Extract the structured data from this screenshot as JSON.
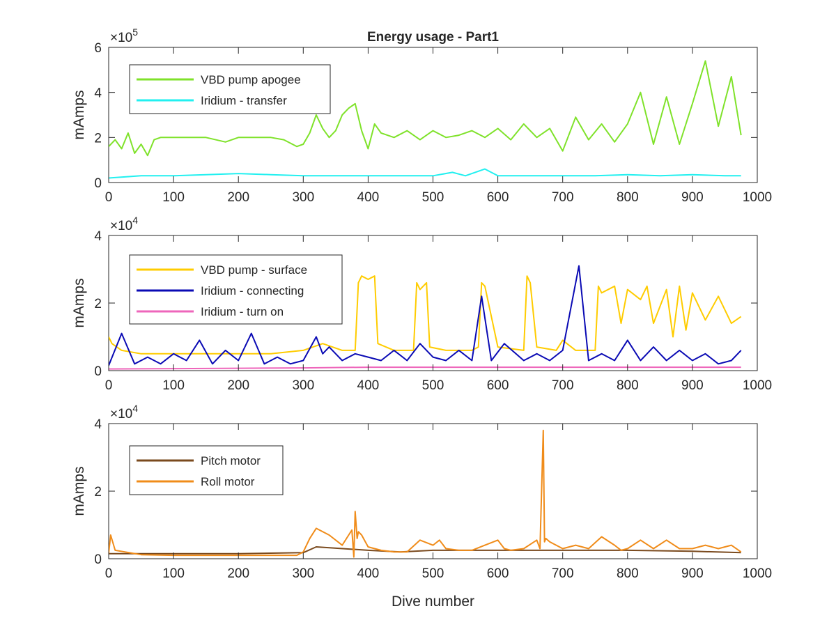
{
  "chart_data": [
    {
      "type": "line",
      "title": "Energy usage - Part1",
      "xlabel": "",
      "ylabel": "mAmps",
      "exponent": "5",
      "xlim": [
        0,
        1000
      ],
      "ylim": [
        0,
        600000
      ],
      "xticks": [
        "0",
        "100",
        "200",
        "300",
        "400",
        "500",
        "600",
        "700",
        "800",
        "900",
        "1000"
      ],
      "yticks": [
        "0",
        "2",
        "4",
        "6"
      ],
      "legend_position": "top-left",
      "grid": false,
      "series": [
        {
          "name": "VBD pump apogee",
          "color": "#7fe22a",
          "x": [
            0,
            10,
            20,
            30,
            40,
            50,
            60,
            70,
            80,
            100,
            150,
            180,
            200,
            250,
            270,
            290,
            300,
            310,
            320,
            330,
            340,
            350,
            360,
            370,
            380,
            390,
            400,
            410,
            420,
            440,
            460,
            480,
            500,
            520,
            540,
            560,
            580,
            600,
            620,
            640,
            660,
            680,
            700,
            720,
            740,
            760,
            780,
            800,
            820,
            840,
            860,
            880,
            900,
            920,
            940,
            960,
            975
          ],
          "values": [
            160000,
            190000,
            150000,
            220000,
            130000,
            170000,
            120000,
            190000,
            200000,
            200000,
            200000,
            180000,
            200000,
            200000,
            190000,
            160000,
            170000,
            220000,
            300000,
            240000,
            200000,
            230000,
            300000,
            330000,
            350000,
            230000,
            150000,
            260000,
            220000,
            200000,
            230000,
            190000,
            230000,
            200000,
            210000,
            230000,
            200000,
            240000,
            190000,
            260000,
            200000,
            240000,
            140000,
            290000,
            190000,
            260000,
            180000,
            260000,
            400000,
            170000,
            380000,
            170000,
            350000,
            540000,
            250000,
            470000,
            210000
          ]
        },
        {
          "name": "Iridium - transfer",
          "color": "#22f0f0",
          "x": [
            0,
            50,
            100,
            150,
            200,
            250,
            300,
            350,
            400,
            450,
            500,
            530,
            550,
            580,
            600,
            650,
            700,
            750,
            800,
            850,
            900,
            950,
            975
          ],
          "values": [
            20000,
            30000,
            30000,
            35000,
            40000,
            35000,
            30000,
            30000,
            30000,
            30000,
            30000,
            45000,
            30000,
            60000,
            30000,
            30000,
            30000,
            30000,
            35000,
            30000,
            35000,
            30000,
            30000
          ]
        }
      ]
    },
    {
      "type": "line",
      "title": "",
      "xlabel": "",
      "ylabel": "mAmps",
      "exponent": "4",
      "xlim": [
        0,
        1000
      ],
      "ylim": [
        0,
        40000
      ],
      "xticks": [
        "0",
        "100",
        "200",
        "300",
        "400",
        "500",
        "600",
        "700",
        "800",
        "900",
        "1000"
      ],
      "yticks": [
        "0",
        "2",
        "4"
      ],
      "legend_position": "top-left",
      "grid": false,
      "series": [
        {
          "name": "VBD pump - surface",
          "color": "#ffcc00",
          "x": [
            0,
            5,
            20,
            50,
            100,
            150,
            200,
            250,
            300,
            330,
            360,
            380,
            385,
            390,
            400,
            410,
            415,
            440,
            470,
            475,
            480,
            490,
            495,
            520,
            560,
            570,
            575,
            580,
            600,
            640,
            645,
            650,
            660,
            690,
            700,
            720,
            750,
            755,
            760,
            780,
            790,
            800,
            820,
            830,
            840,
            860,
            870,
            880,
            890,
            900,
            920,
            940,
            960,
            975
          ],
          "values": [
            10000,
            8000,
            6000,
            5000,
            5000,
            5000,
            5000,
            5000,
            6000,
            8000,
            6000,
            6000,
            26000,
            28000,
            27000,
            28000,
            8000,
            6000,
            6000,
            26000,
            24000,
            26000,
            7000,
            6000,
            6000,
            7000,
            26000,
            25000,
            7000,
            6000,
            28000,
            26000,
            7000,
            6000,
            9000,
            6000,
            6000,
            25000,
            23000,
            25000,
            14000,
            24000,
            21000,
            25000,
            14000,
            24000,
            10000,
            25000,
            12000,
            23000,
            15000,
            22000,
            14000,
            16000
          ]
        },
        {
          "name": "Iridium - connecting",
          "color": "#0a0ab4",
          "x": [
            0,
            20,
            40,
            60,
            80,
            100,
            120,
            140,
            160,
            180,
            200,
            220,
            240,
            260,
            280,
            300,
            320,
            330,
            340,
            360,
            380,
            400,
            420,
            440,
            460,
            480,
            500,
            520,
            540,
            560,
            575,
            590,
            610,
            640,
            660,
            680,
            700,
            725,
            740,
            760,
            780,
            800,
            820,
            840,
            860,
            880,
            900,
            920,
            940,
            960,
            975
          ],
          "values": [
            1500,
            11000,
            2000,
            4000,
            2000,
            5000,
            3000,
            9000,
            2000,
            6000,
            3000,
            11000,
            2000,
            4000,
            2000,
            3000,
            10000,
            5000,
            7000,
            3000,
            5000,
            4000,
            3000,
            6000,
            3000,
            8000,
            4000,
            3000,
            6000,
            3000,
            22000,
            3000,
            8000,
            3000,
            5000,
            3000,
            6000,
            31000,
            3000,
            5000,
            3000,
            9000,
            3000,
            7000,
            3000,
            6000,
            3000,
            5000,
            2000,
            3000,
            6000
          ]
        },
        {
          "name": "Iridium - turn on",
          "color": "#ee66bb",
          "x": [
            0,
            100,
            200,
            300,
            400,
            500,
            600,
            700,
            800,
            900,
            975
          ],
          "values": [
            500,
            600,
            700,
            800,
            1000,
            1000,
            1000,
            1000,
            1000,
            1000,
            1000
          ]
        }
      ]
    },
    {
      "type": "line",
      "title": "",
      "xlabel": "Dive number",
      "ylabel": "mAmps",
      "exponent": "4",
      "xlim": [
        0,
        1000
      ],
      "ylim": [
        0,
        40000
      ],
      "xticks": [
        "0",
        "100",
        "200",
        "300",
        "400",
        "500",
        "600",
        "700",
        "800",
        "900",
        "1000"
      ],
      "yticks": [
        "0",
        "2",
        "4"
      ],
      "legend_position": "top-left",
      "grid": false,
      "series": [
        {
          "name": "Pitch motor",
          "color": "#7a4a1e",
          "x": [
            0,
            100,
            200,
            300,
            320,
            400,
            450,
            500,
            600,
            700,
            800,
            900,
            975
          ],
          "values": [
            1500,
            1500,
            1500,
            1800,
            3500,
            2500,
            2000,
            2500,
            2500,
            2500,
            2500,
            2200,
            1800
          ]
        },
        {
          "name": "Roll motor",
          "color": "#f08c1a",
          "x": [
            0,
            3,
            10,
            50,
            100,
            150,
            200,
            250,
            290,
            300,
            310,
            320,
            340,
            360,
            370,
            375,
            378,
            380,
            383,
            385,
            390,
            400,
            410,
            420,
            440,
            460,
            480,
            500,
            510,
            520,
            540,
            560,
            580,
            600,
            610,
            620,
            640,
            660,
            665,
            670,
            672,
            674,
            680,
            700,
            720,
            740,
            760,
            780,
            790,
            800,
            820,
            840,
            860,
            880,
            900,
            920,
            940,
            960,
            975
          ],
          "values": [
            1500,
            7000,
            2500,
            1200,
            1000,
            1000,
            1000,
            1000,
            1000,
            2000,
            6000,
            9000,
            7000,
            4000,
            7000,
            8500,
            500,
            14000,
            6000,
            8000,
            7000,
            3500,
            3000,
            2500,
            2000,
            2000,
            5500,
            4000,
            5500,
            3000,
            2500,
            2500,
            4000,
            5500,
            3000,
            2500,
            3000,
            5500,
            3000,
            38000,
            5000,
            6000,
            5000,
            3000,
            4000,
            3000,
            6500,
            4000,
            2500,
            3000,
            5500,
            3000,
            5500,
            3000,
            3000,
            4000,
            3000,
            4000,
            2000
          ]
        }
      ]
    }
  ]
}
